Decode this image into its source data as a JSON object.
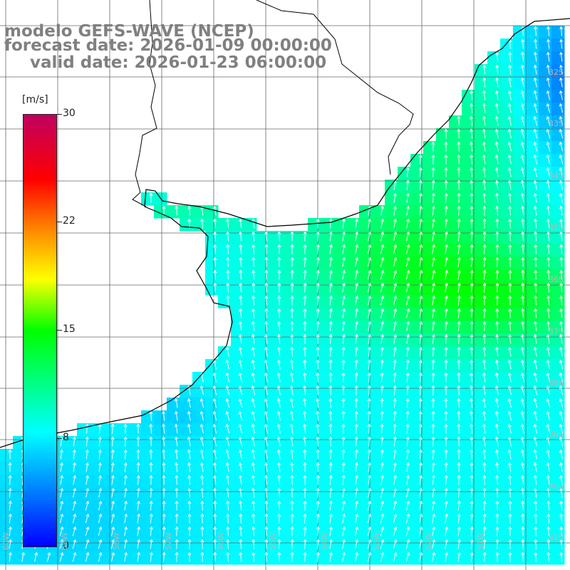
{
  "title": {
    "line1": "modelo GEFS-WAVE (NCEP)",
    "line2": "forecast date: 2026-01-09 00:00:00",
    "line3": "valid date: 2026-01-23 06:00:00"
  },
  "colorbar": {
    "unit": "[m/s]",
    "ticks": [
      "30",
      "22",
      "15",
      "8",
      "0"
    ],
    "colors": [
      "#0000ff",
      "#0080ff",
      "#00ffff",
      "#00ff00",
      "#ffff00",
      "#ff8000",
      "#ff0000",
      "#c00060"
    ]
  },
  "lat_labels": [
    "32S",
    "33S",
    "34S",
    "35S",
    "36S",
    "37S",
    "38S",
    "39S",
    "40S",
    "41S"
  ],
  "lon_labels": [
    "60W",
    "59W",
    "58W",
    "57W",
    "56W",
    "55W",
    "54W",
    "53W",
    "52W",
    "51W"
  ],
  "colors": {
    "land": "#ffffff",
    "coast": "#000000",
    "grid": "#666666",
    "arrow": "#ffffff"
  }
}
